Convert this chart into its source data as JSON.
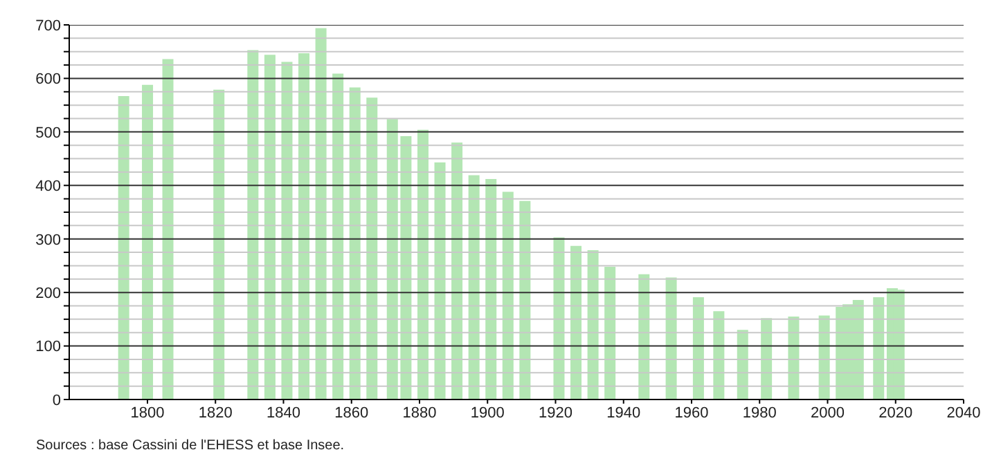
{
  "chart_data": {
    "type": "bar",
    "x": [
      1793,
      1800,
      1806,
      1821,
      1831,
      1836,
      1841,
      1846,
      1851,
      1856,
      1861,
      1866,
      1872,
      1876,
      1881,
      1886,
      1891,
      1896,
      1901,
      1906,
      1911,
      1921,
      1926,
      1931,
      1936,
      1946,
      1954,
      1962,
      1968,
      1975,
      1982,
      1990,
      1999,
      2004,
      2006,
      2009,
      2015,
      2019,
      2021
    ],
    "values": [
      567,
      588,
      636,
      579,
      653,
      644,
      631,
      647,
      694,
      609,
      583,
      564,
      524,
      492,
      504,
      443,
      480,
      419,
      412,
      388,
      371,
      303,
      287,
      279,
      248,
      234,
      228,
      191,
      165,
      130,
      152,
      155,
      157,
      173,
      178,
      186,
      191,
      208,
      205
    ],
    "color": "#b3e6b3",
    "xlim": [
      1777,
      2040
    ],
    "xticks": [
      1800,
      1820,
      1840,
      1860,
      1880,
      1900,
      1920,
      1940,
      1960,
      1980,
      2000,
      2020,
      2040
    ],
    "ylim": [
      0,
      700
    ],
    "yticks": [
      0,
      {
        "value": 25,
        "label": null
      },
      {
        "value": 50,
        "label": null
      },
      {
        "value": 75,
        "label": null
      },
      100,
      {
        "value": 125,
        "label": null
      },
      {
        "value": 150,
        "label": null
      },
      {
        "value": 175,
        "label": null
      },
      200,
      {
        "value": 225,
        "label": null
      },
      {
        "value": 250,
        "label": null
      },
      {
        "value": 275,
        "label": null
      },
      300,
      {
        "value": 325,
        "label": null
      },
      {
        "value": 350,
        "label": null
      },
      {
        "value": 375,
        "label": null
      },
      400,
      {
        "value": 425,
        "label": null
      },
      {
        "value": 450,
        "label": null
      },
      {
        "value": 475,
        "label": null
      },
      500,
      {
        "value": 525,
        "label": null
      },
      {
        "value": 550,
        "label": null
      },
      {
        "value": 575,
        "label": null
      },
      600,
      {
        "value": 625,
        "label": null
      },
      {
        "value": 650,
        "label": null
      },
      {
        "value": 675,
        "label": null
      },
      700
    ],
    "grid": "y",
    "annotations": [
      "Sources : base Cassini de l'EHESS et base Insee."
    ]
  }
}
